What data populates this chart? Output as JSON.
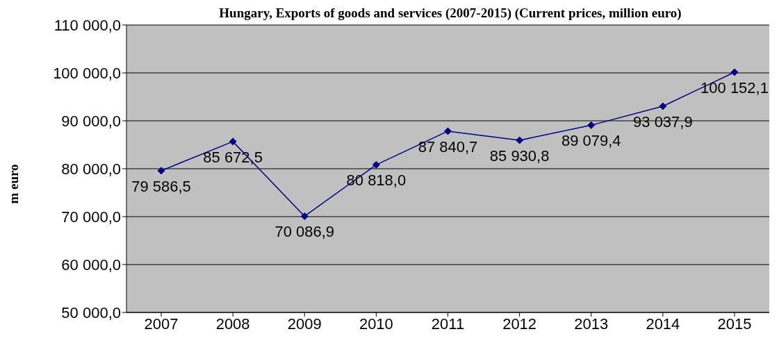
{
  "chart_data": {
    "type": "line",
    "title": "Hungary, Exports of goods and services (2007-2015) (Current prices, million euro)",
    "ylabel": "m euro",
    "categories": [
      "2007",
      "2008",
      "2009",
      "2010",
      "2011",
      "2012",
      "2013",
      "2014",
      "2015"
    ],
    "series": [
      {
        "color": "#000080",
        "values": [
          79586.5,
          85672.5,
          70086.9,
          80818.0,
          87840.7,
          85930.8,
          89079.4,
          93037.9,
          100152.1
        ],
        "value_labels": [
          "79 586,5",
          "85 672,5",
          "70 086,9",
          "80 818,0",
          "87 840,7",
          "85 930,8",
          "89 079,4",
          "93 037,9",
          "100 152,1"
        ]
      }
    ],
    "ylim": [
      50000,
      110000
    ],
    "yticks": [
      {
        "value": 50000,
        "label": "50 000,0"
      },
      {
        "value": 60000,
        "label": "60 000,0"
      },
      {
        "value": 70000,
        "label": "70 000,0"
      },
      {
        "value": 80000,
        "label": "80 000,0"
      },
      {
        "value": 90000,
        "label": "90 000,0"
      },
      {
        "value": 100000,
        "label": "100 000,0"
      },
      {
        "value": 110000,
        "label": "110 000,0"
      }
    ],
    "grid": "y",
    "marker": "diamond",
    "line_style": "solid"
  }
}
